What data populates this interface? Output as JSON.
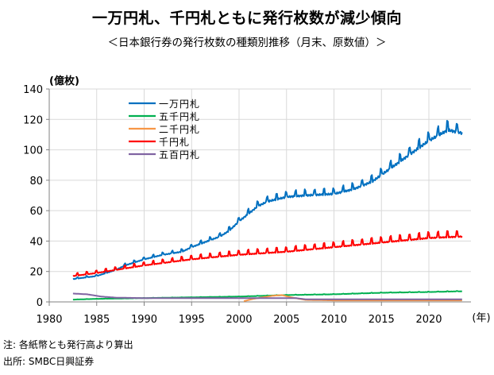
{
  "title": "一万円札、千円札ともに発行枚数が減少傾向",
  "subtitle": "＜日本銀行券の発行枚数の種類別推移（月末、原数値）＞",
  "notes": [
    "注: 各紙幣とも発行高より算出",
    "出所: SMBC日興証券"
  ],
  "chart_data": {
    "type": "line",
    "title": "一万円札、千円札ともに発行枚数が減少傾向",
    "subtitle": "＜日本銀行券の発行枚数の種類別推移（月末、原数値）＞",
    "ylabel": "(億枚)",
    "xlabel": "(年)",
    "xlim": [
      1980,
      2024
    ],
    "ylim": [
      0,
      140
    ],
    "xticks": [
      1980,
      1985,
      1990,
      1995,
      2000,
      2005,
      2010,
      2015,
      2020
    ],
    "yticks": [
      0,
      20,
      40,
      60,
      80,
      100,
      120,
      140
    ],
    "grid": true,
    "legend_position": "top-left",
    "series": [
      {
        "name": "一万円札",
        "color": "#0070C0",
        "x": [
          1982.5,
          1985,
          1987,
          1988,
          1990,
          1992,
          1994,
          1995,
          1998,
          1999,
          2000,
          2001,
          2002,
          2003,
          2005,
          2007,
          2010,
          2012,
          2014,
          2016,
          2018,
          2020,
          2022,
          2023.5
        ],
        "y": [
          15,
          17,
          21,
          24,
          28,
          31,
          33,
          36,
          43,
          47,
          53,
          58,
          63,
          66,
          69,
          70,
          71,
          74,
          79,
          88,
          97,
          106,
          113,
          111
        ]
      },
      {
        "name": "五千円札",
        "color": "#00B050",
        "x": [
          1982.5,
          1985,
          1990,
          1995,
          2000,
          2005,
          2010,
          2015,
          2020,
          2023.5
        ],
        "y": [
          1.5,
          2,
          2.5,
          3,
          3.5,
          4.5,
          5,
          6,
          6.5,
          7
        ]
      },
      {
        "name": "二千円札",
        "color": "#F79646",
        "x": [
          2000.5,
          2001.5,
          2002.5,
          2003.5,
          2004.5,
          2005.5,
          2007,
          2010,
          2015,
          2020,
          2023.5
        ],
        "y": [
          0.5,
          2,
          3,
          4,
          4.5,
          3,
          1.3,
          1,
          1,
          1,
          1
        ]
      },
      {
        "name": "千円札",
        "color": "#FF0000",
        "x": [
          1982.5,
          1985,
          1987,
          1990,
          1995,
          2000,
          2005,
          2010,
          2015,
          2020,
          2023.5
        ],
        "y": [
          17,
          19,
          21,
          24,
          28,
          31,
          33,
          36,
          39,
          42,
          43
        ]
      },
      {
        "name": "五百円札",
        "color": "#8064A2",
        "x": [
          1982.5,
          1984,
          1985.5,
          1987,
          1990,
          2000,
          2006,
          2007,
          2023.5
        ],
        "y": [
          5.5,
          5,
          3.5,
          2.8,
          2.5,
          2.5,
          2.5,
          1.7,
          1.7
        ]
      }
    ]
  }
}
